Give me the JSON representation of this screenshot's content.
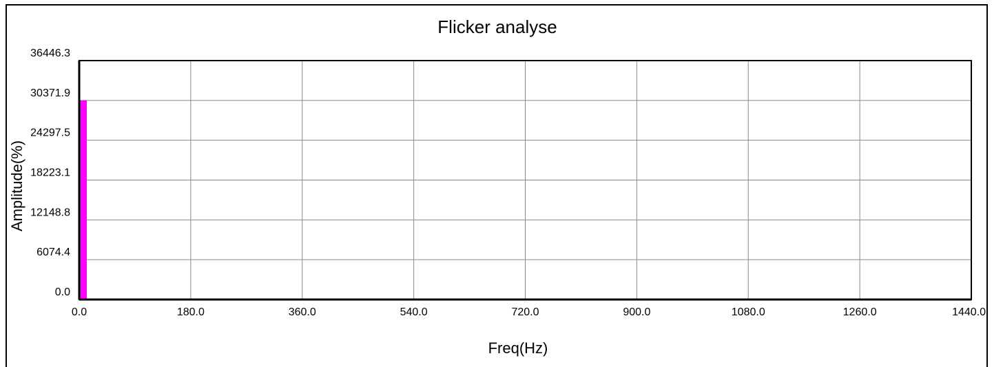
{
  "chart_data": {
    "type": "bar",
    "title": "Flicker analyse",
    "xlabel": "Freq(Hz)",
    "ylabel": "Amplitude(%)",
    "xlim": [
      0,
      1440
    ],
    "ylim": [
      0,
      36446.3
    ],
    "x_ticks": [
      "0.0",
      "180.0",
      "360.0",
      "540.0",
      "720.0",
      "900.0",
      "1080.0",
      "1260.0",
      "1440.0"
    ],
    "y_ticks": [
      "0.0",
      "6074.4",
      "12148.8",
      "18223.1",
      "24297.5",
      "30371.9",
      "36446.3"
    ],
    "grid": true,
    "bar_color": "#ff00ff",
    "x": [
      0,
      60,
      160,
      220,
      260,
      300,
      360,
      400,
      600,
      1440
    ],
    "values": [
      30371.9,
      30,
      20,
      20,
      20,
      20,
      20,
      20,
      20,
      40
    ]
  }
}
